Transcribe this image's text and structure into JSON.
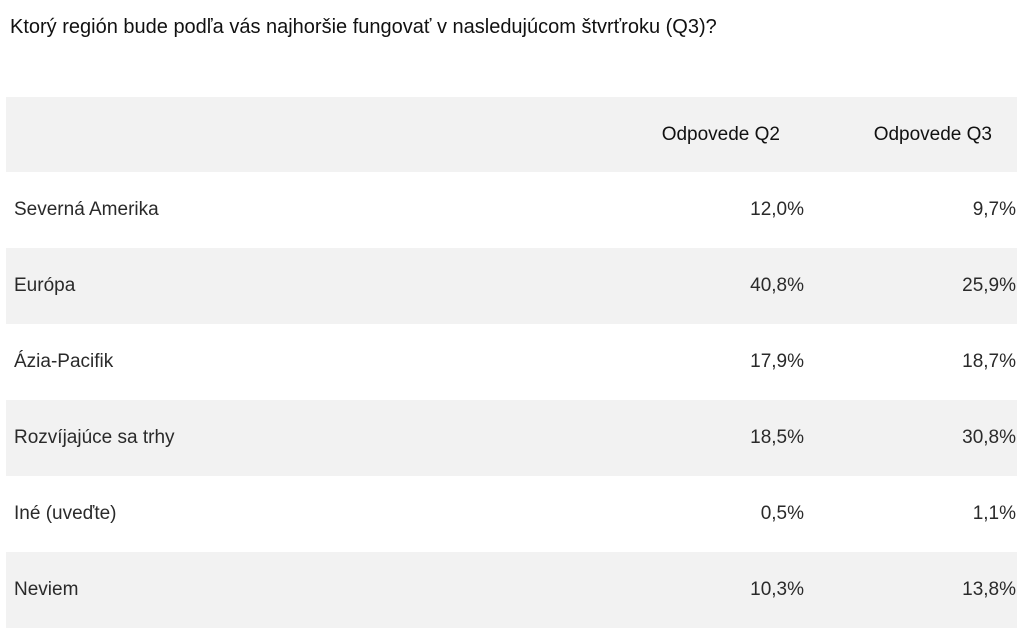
{
  "title": "Ktorý región bude podľa vás najhoršie fungovať v nasledujúcom štvrťroku (Q3)?",
  "table": {
    "headers": {
      "label": "",
      "q2": "Odpovede Q2",
      "q3": "Odpovede Q3"
    },
    "rows": [
      {
        "label": "Severná Amerika",
        "q2": "12,0%",
        "q3": "9,7%"
      },
      {
        "label": "Európa",
        "q2": "40,8%",
        "q3": "25,9%"
      },
      {
        "label": "Ázia-Pacifik",
        "q2": "17,9%",
        "q3": "18,7%"
      },
      {
        "label": "Rozvíjajúce sa trhy",
        "q2": "18,5%",
        "q3": "30,8%"
      },
      {
        "label": "Iné (uveďte)",
        "q2": "0,5%",
        "q3": "1,1%"
      },
      {
        "label": "Neviem",
        "q2": "10,3%",
        "q3": "13,8%"
      }
    ]
  },
  "colors": {
    "shaded_row": "#f2f2f2",
    "text": "#2a2a2a"
  }
}
